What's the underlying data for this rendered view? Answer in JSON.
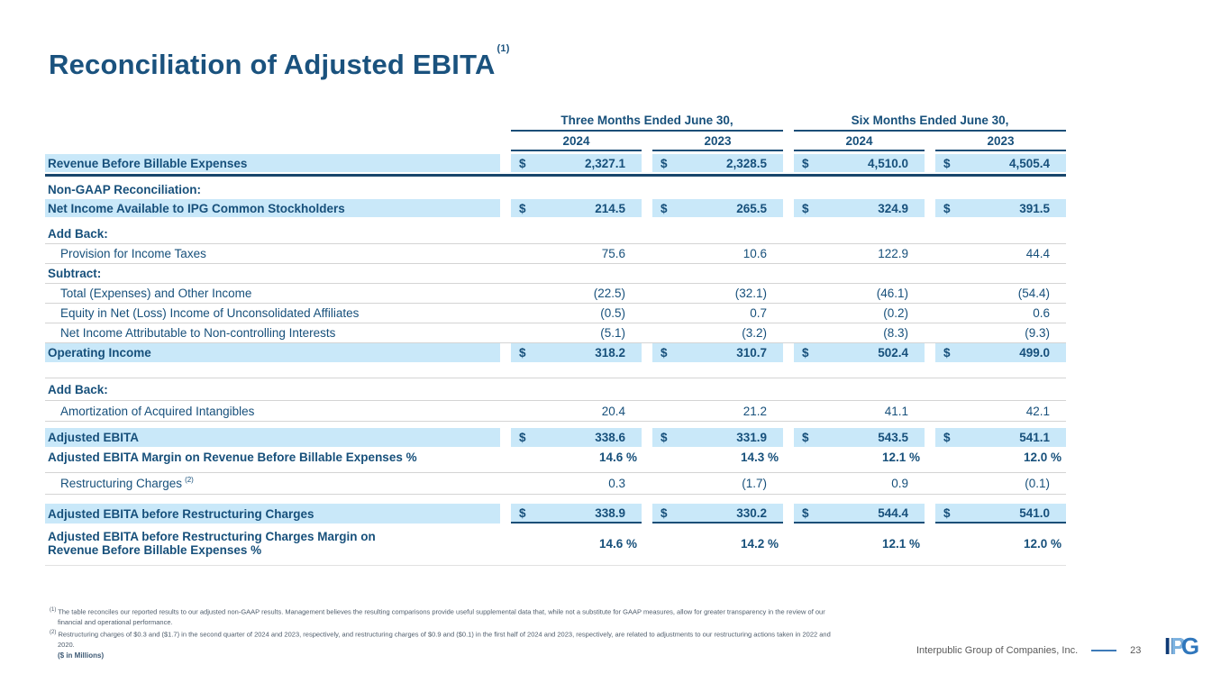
{
  "slide": {
    "title": "Reconciliation of Adjusted EBITA",
    "title_footnote_marker": "(1)"
  },
  "colors": {
    "navy_text": "#17507B",
    "highlight_blue": "#C9E8F9",
    "rule_navy": "#1B4E77",
    "rule_gray": "#D4D4D4",
    "footer_dash_blue": "#3D7AB8"
  },
  "table": {
    "col_groups": [
      {
        "label": "Three Months Ended June 30,"
      },
      {
        "label": "Six Months Ended June 30,"
      }
    ],
    "years": [
      "2024",
      "2023",
      "2024",
      "2023"
    ],
    "rows": {
      "revenue": {
        "label": "Revenue Before Billable Expenses",
        "currency": "$",
        "values": [
          "2,327.1",
          "2,328.5",
          "4,510.0",
          "4,505.4"
        ]
      },
      "non_gaap_header": {
        "label": "Non-GAAP Reconciliation:"
      },
      "net_income": {
        "label": "Net Income Available to IPG Common Stockholders",
        "currency": "$",
        "values": [
          "214.5",
          "265.5",
          "324.9",
          "391.5"
        ]
      },
      "add_back_1": {
        "label": "Add Back:"
      },
      "provision_taxes": {
        "label": "Provision for Income Taxes",
        "values": [
          "75.6",
          "10.6",
          "122.9",
          "44.4"
        ]
      },
      "subtract": {
        "label": "Subtract:"
      },
      "total_expenses": {
        "label": "Total (Expenses) and Other Income",
        "values": [
          "(22.5)",
          "(32.1)",
          "(46.1)",
          "(54.4)"
        ]
      },
      "equity_affiliates": {
        "label": "Equity in Net (Loss) Income of Unconsolidated Affiliates",
        "values": [
          "(0.5)",
          "0.7",
          "(0.2)",
          "0.6"
        ]
      },
      "non_controlling": {
        "label": "Net Income Attributable to Non-controlling Interests",
        "values": [
          "(5.1)",
          "(3.2)",
          "(8.3)",
          "(9.3)"
        ]
      },
      "operating_income": {
        "label": "Operating Income",
        "currency": "$",
        "values": [
          "318.2",
          "310.7",
          "502.4",
          "499.0"
        ]
      },
      "add_back_2": {
        "label": "Add Back:"
      },
      "amortization": {
        "label": "Amortization of Acquired Intangibles",
        "values": [
          "20.4",
          "21.2",
          "41.1",
          "42.1"
        ]
      },
      "adjusted_ebita": {
        "label": "Adjusted EBITA",
        "currency": "$",
        "values": [
          "338.6",
          "331.9",
          "543.5",
          "541.1"
        ]
      },
      "adjusted_ebita_margin": {
        "label": "Adjusted EBITA Margin on Revenue Before Billable Expenses %",
        "values": [
          "14.6 %",
          "14.3 %",
          "12.1 %",
          "12.0 %"
        ]
      },
      "restructuring": {
        "label": "Restructuring Charges",
        "marker": "(2)",
        "values": [
          "0.3",
          "(1.7)",
          "0.9",
          "(0.1)"
        ]
      },
      "adj_ebita_before_restructuring": {
        "label": "Adjusted EBITA before Restructuring Charges",
        "currency": "$",
        "values": [
          "338.9",
          "330.2",
          "544.4",
          "541.0"
        ]
      },
      "adj_ebita_before_restructuring_margin": {
        "label_line1": "Adjusted EBITA before Restructuring Charges Margin on",
        "label_line2": "Revenue Before Billable Expenses %",
        "values": [
          "14.6 %",
          "14.2 %",
          "12.1 %",
          "12.0 %"
        ]
      }
    }
  },
  "footnotes": {
    "f1_marker": "(1)",
    "f1_text": "The table reconciles our reported results to our adjusted non-GAAP results. Management believes the resulting comparisons provide useful supplemental data that, while not a substitute for GAAP measures, allow for greater transparency in the review of our financial and operational performance.",
    "f2_marker": "(2)",
    "f2_text": "Restructuring charges of $0.3 and ($1.7) in the second quarter of 2024 and 2023, respectively, and restructuring charges of $0.9 and ($0.1) in the first half of 2024 and 2023, respectively, are related to adjustments to our restructuring actions taken in 2022 and 2020.",
    "units_note": "($ in Millions)"
  },
  "footer": {
    "company": "Interpublic Group of Companies, Inc.",
    "page_number": "23",
    "logo_i_p": "IP",
    "logo_p_accent": "P",
    "logo_g": "G"
  }
}
